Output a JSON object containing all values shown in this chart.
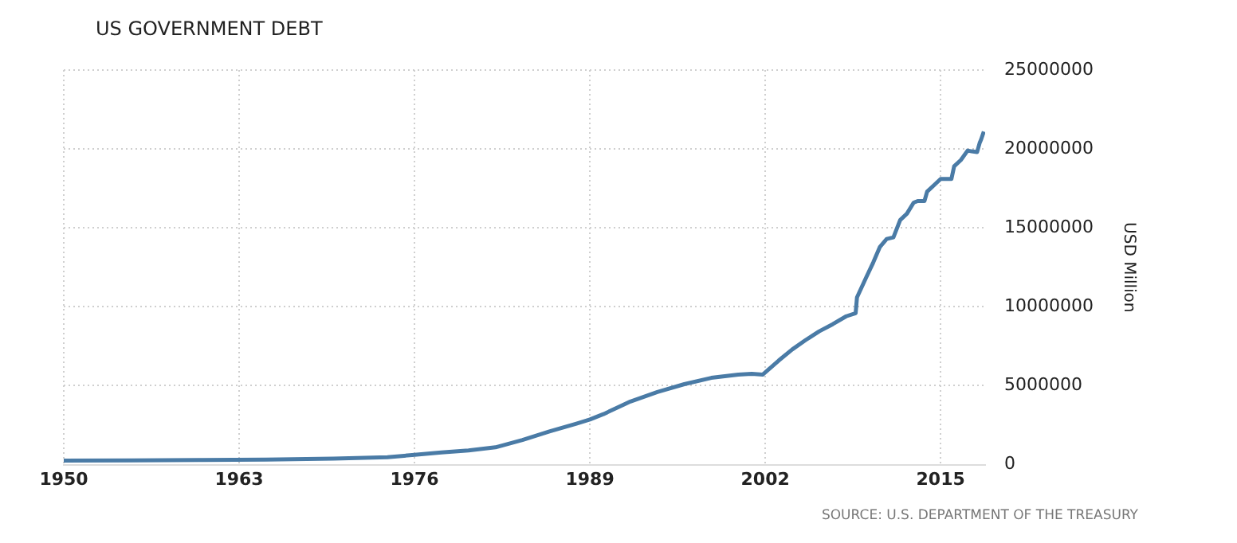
{
  "chart_data": {
    "type": "line",
    "title": "US GOVERNMENT DEBT",
    "ylabel": "USD Million",
    "annotations": [
      "SOURCE: U.S. DEPARTMENT OF THE TREASURY"
    ],
    "x": [
      1950,
      1955,
      1960,
      1965,
      1970,
      1974,
      1976,
      1978,
      1980,
      1982,
      1984,
      1986,
      1988,
      1989,
      1990,
      1992,
      1994,
      1996,
      1998,
      2000,
      2001,
      2001.8,
      2003,
      2004,
      2005,
      2006,
      2007,
      2008,
      2008.7,
      2008.8,
      2009.5,
      2010,
      2010.5,
      2011,
      2011.5,
      2012,
      2012.5,
      2013,
      2013.3,
      2013.8,
      2014,
      2014.5,
      2015,
      2015.3,
      2015.8,
      2016,
      2016.5,
      2017,
      2017.3,
      2017.7,
      2017.9,
      2018,
      2018.2
    ],
    "series": [
      {
        "color": "#4a7ba6",
        "values": [
          257000,
          274000,
          290000,
          317000,
          380000,
          475000,
          620000,
          770000,
          900000,
          1100000,
          1560000,
          2100000,
          2600000,
          2860000,
          3200000,
          4000000,
          4600000,
          5100000,
          5500000,
          5700000,
          5750000,
          5700000,
          6600000,
          7300000,
          7900000,
          8450000,
          8900000,
          9400000,
          9600000,
          10600000,
          11900000,
          12800000,
          13800000,
          14300000,
          14400000,
          15500000,
          15900000,
          16600000,
          16700000,
          16700000,
          17300000,
          17700000,
          18100000,
          18100000,
          18100000,
          18900000,
          19300000,
          19900000,
          19850000,
          19800000,
          20400000,
          20600000,
          21100000
        ]
      }
    ],
    "xlim": [
      1950,
      2018.3
    ],
    "xticks": [
      1950,
      1963,
      1976,
      1989,
      2002,
      2015
    ],
    "ylim": [
      0,
      25000000
    ],
    "yticks": [
      0,
      5000000,
      10000000,
      15000000,
      20000000,
      25000000
    ],
    "grid": true,
    "legend": false,
    "marker": "none",
    "line_style": "solid"
  }
}
